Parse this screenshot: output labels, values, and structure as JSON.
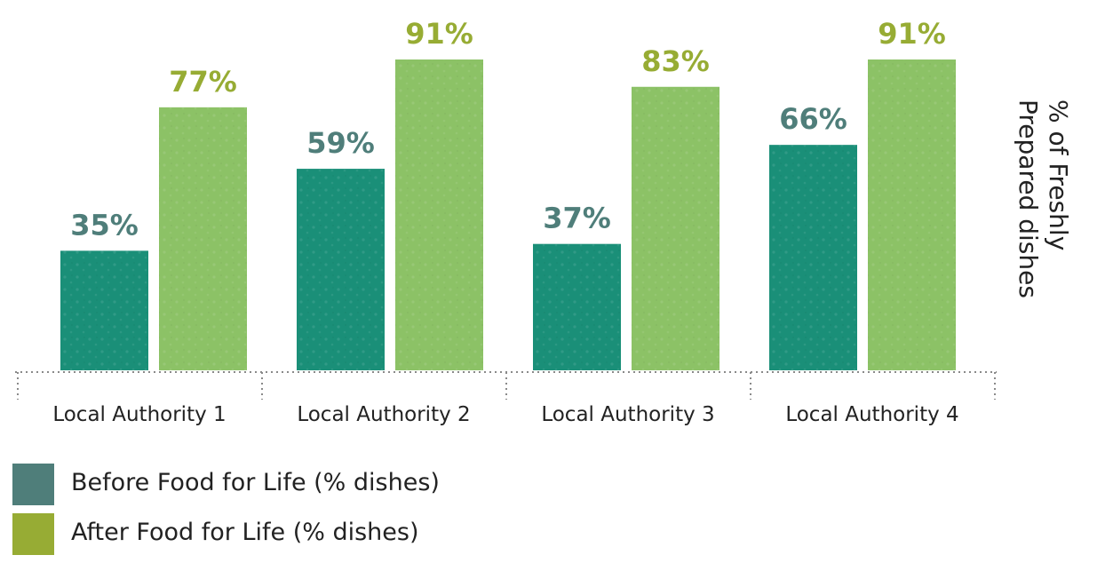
{
  "chart_data": {
    "type": "bar",
    "categories": [
      "Local Authority 1",
      "Local Authority 2",
      "Local Authority 3",
      "Local Authority 4"
    ],
    "series": [
      {
        "name": "Before Food for Life (% dishes)",
        "values": [
          35,
          59,
          37,
          66
        ],
        "labels": [
          "35%",
          "59%",
          "37%",
          "66%"
        ]
      },
      {
        "name": "After Food for Life (% dishes)",
        "values": [
          77,
          91,
          83,
          91
        ],
        "labels": [
          "77%",
          "91%",
          "83%",
          "91%"
        ]
      }
    ],
    "ylabel": "% of Freshly Prepared dishes",
    "ylim": [
      0,
      100
    ],
    "grid": false,
    "legend": "bottom-left"
  },
  "colors": {
    "before_bar": "#1a8f78",
    "after_bar": "#8cc266",
    "before_label": "#4f7e7a",
    "after_label": "#97ac34",
    "before_swatch": "#4f7e7a",
    "after_swatch": "#97ac34",
    "axis_text": "#222222"
  }
}
